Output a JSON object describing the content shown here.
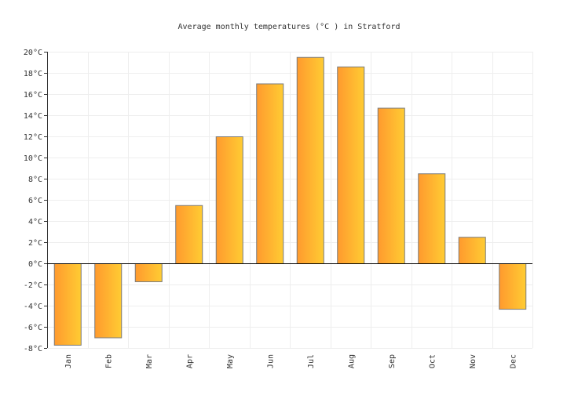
{
  "chart_data": {
    "type": "bar",
    "title": "Average monthly temperatures (°C ) in Stratford",
    "xlabel": "",
    "ylabel": "",
    "categories": [
      "Jan",
      "Feb",
      "Mar",
      "Apr",
      "May",
      "Jun",
      "Jul",
      "Aug",
      "Sep",
      "Oct",
      "Nov",
      "Dec"
    ],
    "values": [
      -7.7,
      -7.0,
      -1.7,
      5.5,
      12.0,
      17.0,
      19.5,
      18.6,
      14.7,
      8.5,
      2.5,
      -4.3
    ],
    "ylim": [
      -8,
      20
    ],
    "yticks": [
      -8,
      -6,
      -4,
      -2,
      0,
      2,
      4,
      6,
      8,
      10,
      12,
      14,
      16,
      18,
      20
    ],
    "ytick_suffix": "°C",
    "grid": true,
    "colors": {
      "bar_start": "#ff9a2e",
      "bar_end": "#ffcc33",
      "bar_border": "#7a7a7a",
      "grid": "#eeeeee"
    }
  }
}
